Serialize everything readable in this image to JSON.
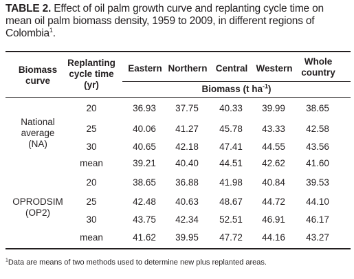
{
  "caption": {
    "label": "TABLE 2.",
    "text": "Effect of oil palm growth curve and replanting cycle time on mean oil palm biomass density, 1959 to 2009, in different regions of Colombia",
    "footnote_mark": "1",
    "end": "."
  },
  "header": {
    "col1": [
      "Biomass",
      "curve"
    ],
    "col2": [
      "Replanting",
      "cycle time",
      "(yr)"
    ],
    "regions": [
      "Eastern",
      "Northern",
      "Central",
      "Western"
    ],
    "whole": [
      "Whole",
      "country"
    ],
    "biomass_unit_pre": "Biomass (t ha",
    "biomass_unit_sup": "-1",
    "biomass_unit_post": ")"
  },
  "groups": [
    {
      "name": [
        "National",
        "average",
        "(NA)"
      ],
      "rows": [
        {
          "cycle": "20",
          "values": [
            "36.93",
            "37.75",
            "40.33",
            "39.99",
            "38.65"
          ]
        },
        {
          "cycle": "25",
          "values": [
            "40.06",
            "41.27",
            "45.78",
            "43.33",
            "42.58"
          ]
        },
        {
          "cycle": "30",
          "values": [
            "40.65",
            "42.18",
            "47.41",
            "44.55",
            "43.56"
          ]
        },
        {
          "cycle": "mean",
          "values": [
            "39.21",
            "40.40",
            "44.51",
            "42.62",
            "41.60"
          ]
        }
      ]
    },
    {
      "name": [
        "OPRODSIM",
        "(OP2)"
      ],
      "rows": [
        {
          "cycle": "20",
          "values": [
            "38.65",
            "36.88",
            "41.98",
            "40.84",
            "39.53"
          ]
        },
        {
          "cycle": "25",
          "values": [
            "42.48",
            "40.63",
            "48.67",
            "44.72",
            "44.10"
          ]
        },
        {
          "cycle": "30",
          "values": [
            "43.75",
            "42.34",
            "52.51",
            "46.91",
            "46.17"
          ]
        },
        {
          "cycle": "mean",
          "values": [
            "41.62",
            "39.95",
            "47.72",
            "44.16",
            "43.27"
          ]
        }
      ]
    }
  ],
  "footnote": {
    "mark": "1",
    "text": "Data are means of two methods used to determine new plus replanted areas."
  }
}
